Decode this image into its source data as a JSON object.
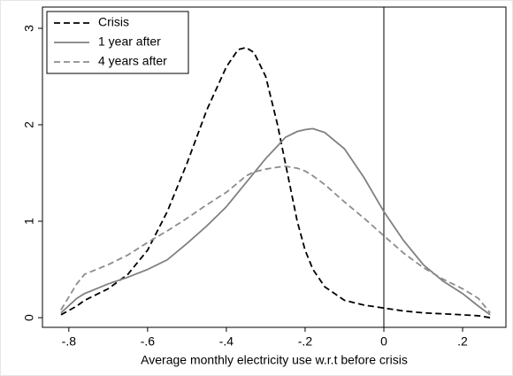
{
  "chart_data": {
    "type": "line",
    "x_label": "Average monthly electricity use w.r.t before crisis",
    "x": [
      -0.82,
      -0.78,
      -0.76,
      -0.7,
      -0.65,
      -0.6,
      -0.55,
      -0.5,
      -0.45,
      -0.4,
      -0.37,
      -0.35,
      -0.33,
      -0.3,
      -0.27,
      -0.25,
      -0.22,
      -0.2,
      -0.18,
      -0.15,
      -0.1,
      -0.05,
      0,
      0.05,
      0.1,
      0.15,
      0.2,
      0.24,
      0.27
    ],
    "series": [
      {
        "name": "Crisis",
        "color": "#000000",
        "style": "dashed",
        "values": [
          0.03,
          0.12,
          0.18,
          0.3,
          0.45,
          0.7,
          1.1,
          1.6,
          2.15,
          2.6,
          2.78,
          2.8,
          2.75,
          2.5,
          2.0,
          1.6,
          1.0,
          0.7,
          0.5,
          0.32,
          0.18,
          0.13,
          0.1,
          0.07,
          0.05,
          0.04,
          0.03,
          0.02,
          0.0
        ]
      },
      {
        "name": "1 year after",
        "color": "#808080",
        "style": "solid",
        "values": [
          0.05,
          0.2,
          0.25,
          0.35,
          0.42,
          0.5,
          0.6,
          0.77,
          0.95,
          1.15,
          1.3,
          1.4,
          1.5,
          1.65,
          1.78,
          1.87,
          1.93,
          1.95,
          1.96,
          1.92,
          1.75,
          1.45,
          1.1,
          0.8,
          0.55,
          0.38,
          0.25,
          0.12,
          0.03
        ]
      },
      {
        "name": "4 years after",
        "color": "#8c8c8c",
        "style": "dashed",
        "values": [
          0.08,
          0.35,
          0.45,
          0.55,
          0.65,
          0.78,
          0.9,
          1.03,
          1.17,
          1.3,
          1.4,
          1.47,
          1.51,
          1.54,
          1.56,
          1.57,
          1.55,
          1.52,
          1.47,
          1.38,
          1.2,
          1.03,
          0.85,
          0.67,
          0.52,
          0.4,
          0.3,
          0.2,
          0.05
        ]
      }
    ],
    "xlim": [
      -0.867,
      0.31
    ],
    "ylim": [
      -0.1,
      3.22
    ],
    "xticks": [
      {
        "value": -0.8,
        "label": "-.8"
      },
      {
        "value": -0.6,
        "label": "-.6"
      },
      {
        "value": -0.4,
        "label": "-.4"
      },
      {
        "value": -0.2,
        "label": "-.2"
      },
      0,
      {
        "value": 0.2,
        "label": ".2"
      }
    ],
    "yticks": [
      0,
      1,
      2,
      3
    ],
    "xline": 0,
    "legend": "top-left"
  }
}
